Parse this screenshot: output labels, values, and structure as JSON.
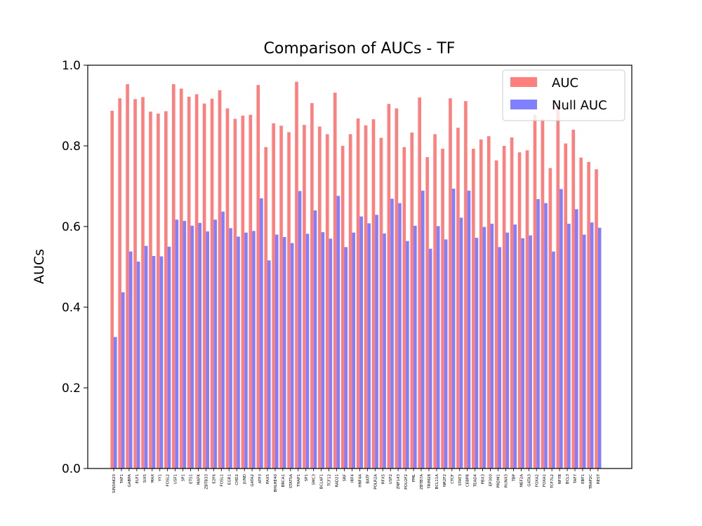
{
  "chart_data": {
    "type": "bar",
    "title": "Comparison of AUCs - TF",
    "xlabel": "",
    "ylabel": "AUCs",
    "ylim": [
      0.0,
      1.0
    ],
    "yticks": [
      "0.0",
      "0.2",
      "0.4",
      "0.6",
      "0.8",
      "1.0"
    ],
    "grid": false,
    "legend_position": "top-right",
    "categories": [
      "SIN3AK20",
      "TAF1",
      "GABPA",
      "ELF1",
      "SIX5",
      "MAX",
      "YY1",
      "FOSL2",
      "USF1",
      "SP1",
      "ETS1",
      "MAFK",
      "ZBTB33",
      "E2F6",
      "FOSL1",
      "EGR1",
      "CHD2",
      "JUND",
      "GATA2",
      "ATF3",
      "PAX5",
      "BHLHE40",
      "BRCA1",
      "STAT5A",
      "THAP1",
      "SP1",
      "SMC3",
      "BCLAF1",
      "TCF12",
      "RAD21",
      "SRF",
      "IRF4",
      "HNF4A",
      "BATF",
      "POLR2A",
      "RFX5",
      "USF2",
      "ZNF143",
      "POU2F2",
      "PML",
      "ZBTB7A",
      "TRIM28",
      "BCL11A",
      "NR2F2",
      "CTCF",
      "STAT3",
      "CEBPB",
      "TEAD4",
      "PBX3",
      "EP300",
      "PRDM1",
      "RUNX3",
      "TBP",
      "MEF2A",
      "GATA3",
      "FOXA2",
      "FOXA1",
      "TCF7L2",
      "NFYB",
      "BCL3",
      "TAF7",
      "EBF1",
      "TRAP2C",
      "REST"
    ],
    "series": [
      {
        "name": "AUC",
        "color": "#ff7f7f",
        "values": [
          0.887,
          0.918,
          0.953,
          0.916,
          0.921,
          0.885,
          0.88,
          0.886,
          0.953,
          0.942,
          0.922,
          0.928,
          0.905,
          0.917,
          0.938,
          0.893,
          0.867,
          0.875,
          0.877,
          0.951,
          0.797,
          0.856,
          0.85,
          0.834,
          0.959,
          0.852,
          0.906,
          0.848,
          0.829,
          0.932,
          0.8,
          0.829,
          0.868,
          0.851,
          0.866,
          0.82,
          0.904,
          0.893,
          0.797,
          0.833,
          0.92,
          0.772,
          0.829,
          0.793,
          0.918,
          0.845,
          0.911,
          0.793,
          0.816,
          0.824,
          0.764,
          0.8,
          0.821,
          0.784,
          0.789,
          0.877,
          0.866,
          0.745,
          0.906,
          0.806,
          0.84,
          0.771,
          0.76,
          0.742
        ]
      },
      {
        "name": "Null AUC",
        "color": "#7f7fff",
        "values": [
          0.326,
          0.437,
          0.538,
          0.513,
          0.552,
          0.527,
          0.526,
          0.55,
          0.617,
          0.614,
          0.602,
          0.609,
          0.588,
          0.617,
          0.637,
          0.596,
          0.575,
          0.585,
          0.589,
          0.67,
          0.516,
          0.58,
          0.574,
          0.559,
          0.688,
          0.582,
          0.64,
          0.586,
          0.57,
          0.676,
          0.549,
          0.585,
          0.625,
          0.608,
          0.629,
          0.583,
          0.669,
          0.658,
          0.564,
          0.602,
          0.689,
          0.545,
          0.601,
          0.568,
          0.694,
          0.622,
          0.689,
          0.572,
          0.599,
          0.607,
          0.549,
          0.585,
          0.605,
          0.571,
          0.578,
          0.668,
          0.658,
          0.538,
          0.693,
          0.607,
          0.643,
          0.58,
          0.61,
          0.597
        ]
      }
    ]
  }
}
